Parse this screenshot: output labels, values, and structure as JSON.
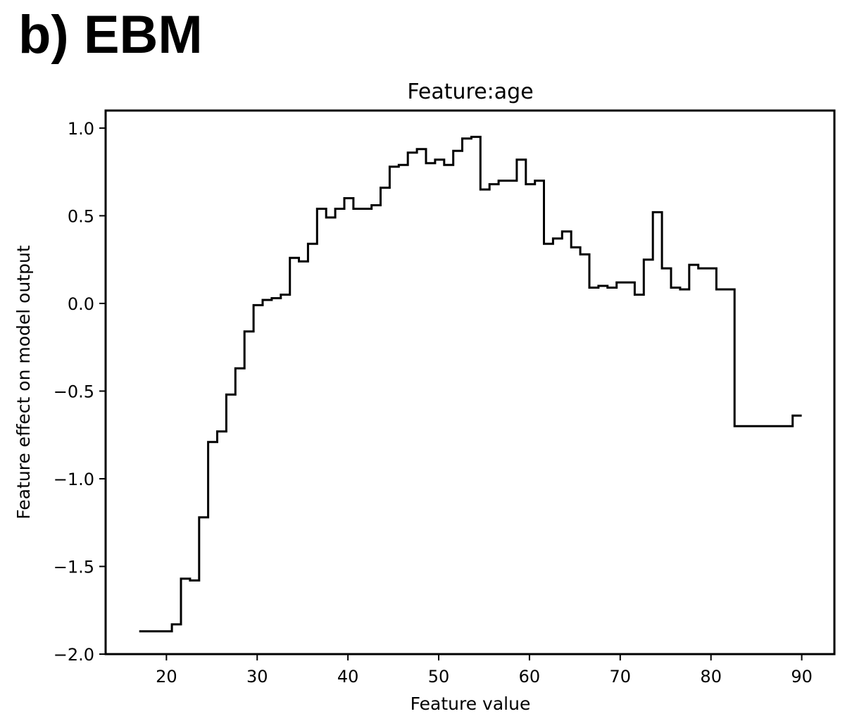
{
  "panel_label": "b) EBM",
  "chart_data": {
    "type": "line",
    "step": true,
    "title": "Feature:age",
    "xlabel": "Feature value",
    "ylabel": "Feature effect on model output",
    "xlim": [
      13.3,
      93.6
    ],
    "ylim": [
      -2.0,
      1.1
    ],
    "xticks": [
      20,
      30,
      40,
      50,
      60,
      70,
      80,
      90
    ],
    "xtick_labels": [
      "20",
      "30",
      "40",
      "50",
      "60",
      "70",
      "80",
      "90"
    ],
    "yticks": [
      1.0,
      0.5,
      0.0,
      -0.5,
      -1.0,
      -1.5,
      -2.0
    ],
    "ytick_labels": [
      "1.0",
      "0.5",
      "0.0",
      "−0.5",
      "−1.0",
      "−1.5",
      "−2.0"
    ],
    "grid": false,
    "line_color": "#000000",
    "series": [
      {
        "x": [
          17,
          20.6,
          21.6,
          22.6,
          23.6,
          24.6,
          25.6,
          26.6,
          27.6,
          28.6,
          29.6,
          30.6,
          31.6,
          32.6,
          33.6,
          34.6,
          35.6,
          36.6,
          37.6,
          38.6,
          39.6,
          40.6,
          41.6,
          42.6,
          43.6,
          44.6,
          45.6,
          46.6,
          47.6,
          48.6,
          49.6,
          50.6,
          51.6,
          52.6,
          53.6,
          54.6,
          55.6,
          56.6,
          57.6,
          58.6,
          59.6,
          60.6,
          61.6,
          62.6,
          63.6,
          64.6,
          65.6,
          66.6,
          67.6,
          68.6,
          69.6,
          70.6,
          71.6,
          72.6,
          73.6,
          74.6,
          75.6,
          76.6,
          77.6,
          78.6,
          80.6,
          82.6,
          89.0,
          90
        ],
        "y": [
          -1.87,
          -1.83,
          -1.57,
          -1.58,
          -1.22,
          -0.79,
          -0.73,
          -0.52,
          -0.37,
          -0.16,
          -0.01,
          0.02,
          0.03,
          0.05,
          0.26,
          0.24,
          0.34,
          0.54,
          0.49,
          0.54,
          0.6,
          0.54,
          0.54,
          0.56,
          0.66,
          0.78,
          0.79,
          0.86,
          0.88,
          0.8,
          0.82,
          0.79,
          0.87,
          0.94,
          0.95,
          0.65,
          0.68,
          0.7,
          0.7,
          0.82,
          0.68,
          0.7,
          0.34,
          0.37,
          0.41,
          0.32,
          0.28,
          0.09,
          0.1,
          0.09,
          0.12,
          0.12,
          0.05,
          0.25,
          0.52,
          0.2,
          0.09,
          0.08,
          0.22,
          0.2,
          0.08,
          -0.7,
          -0.64,
          -0.64
        ]
      }
    ]
  }
}
